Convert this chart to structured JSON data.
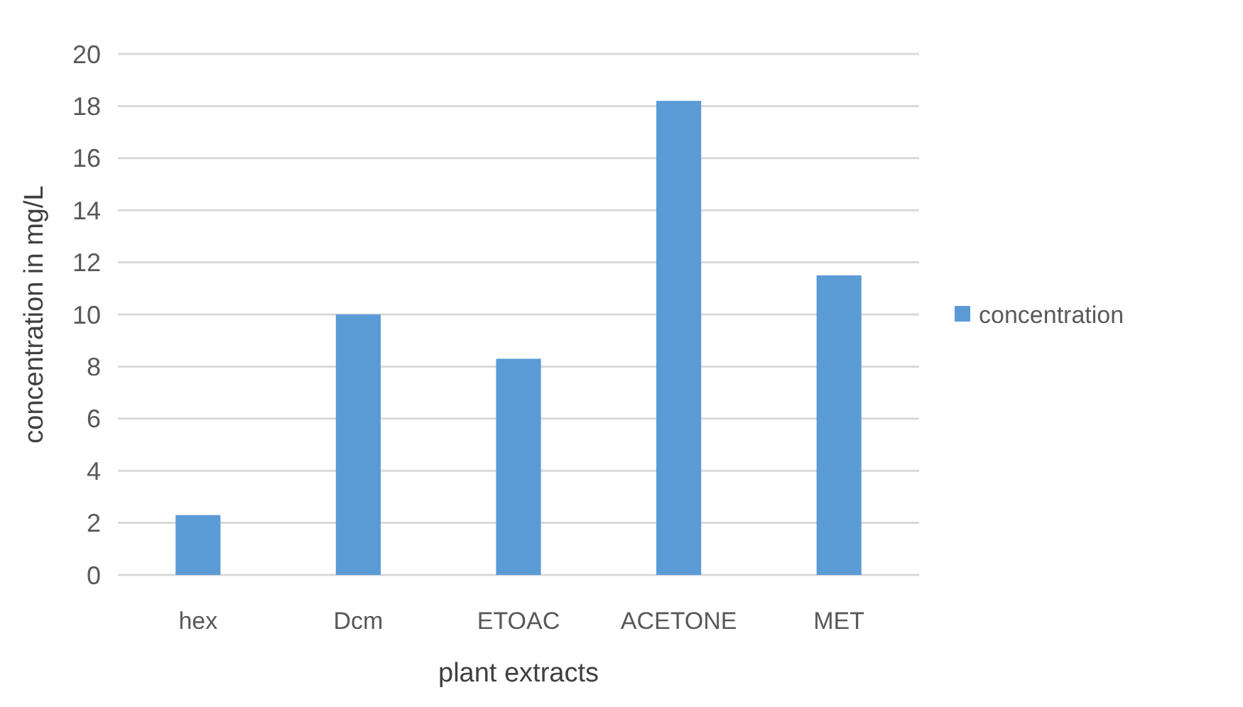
{
  "chart_data": {
    "type": "bar",
    "xlabel": "plant extracts",
    "ylabel": "concentration in mg/L",
    "categories": [
      "hex",
      "Dcm",
      "ETOAC",
      "ACETONE",
      "MET"
    ],
    "series": [
      {
        "name": "concentration",
        "color": "#5b9bd5",
        "values": [
          2.3,
          10,
          8.3,
          18.2,
          11.5
        ]
      }
    ],
    "ylim": [
      0,
      20
    ],
    "yticks": [
      0,
      2,
      4,
      6,
      8,
      10,
      12,
      14,
      16,
      18,
      20
    ],
    "grid": "y",
    "legend": "right"
  }
}
